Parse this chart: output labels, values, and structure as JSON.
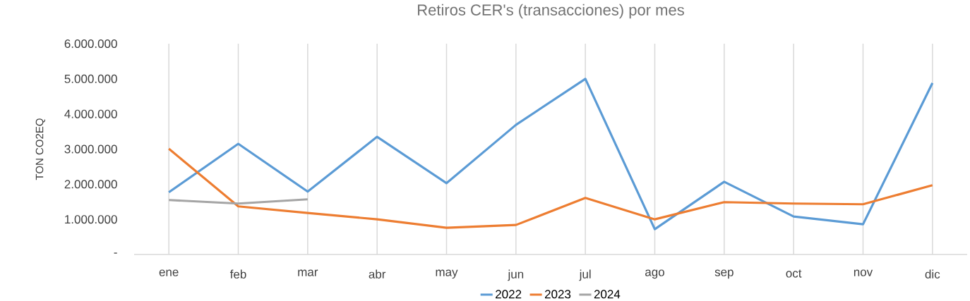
{
  "chart_data": {
    "type": "line",
    "title": "Retiros CER's (transacciones) por mes",
    "ylabel": "TON CO2EQ",
    "categories": [
      "ene",
      "feb",
      "mar",
      "abr",
      "may",
      "jun",
      "jul",
      "ago",
      "sep",
      "oct",
      "nov",
      "dic"
    ],
    "series": [
      {
        "name": "2022",
        "color": "#5b9bd5",
        "values": [
          1770000,
          3150000,
          1790000,
          3350000,
          2030000,
          3690000,
          5000000,
          720000,
          2070000,
          1080000,
          860000,
          4880000
        ]
      },
      {
        "name": "2023",
        "color": "#ed7d31",
        "values": [
          3010000,
          1370000,
          1180000,
          1000000,
          760000,
          840000,
          1610000,
          1000000,
          1490000,
          1450000,
          1430000,
          1970000
        ]
      },
      {
        "name": "2024",
        "color": "#a5a5a5",
        "values": [
          1550000,
          1450000,
          1570000,
          null,
          null,
          null,
          null,
          null,
          null,
          null,
          null,
          null
        ]
      }
    ],
    "ylim": [
      0,
      6000000
    ],
    "yticks": [
      {
        "value": 0,
        "label": "-"
      },
      {
        "value": 1000000,
        "label": "1.000.000"
      },
      {
        "value": 2000000,
        "label": "2.000.000"
      },
      {
        "value": 3000000,
        "label": "3.000.000"
      },
      {
        "value": 4000000,
        "label": "4.000.000"
      },
      {
        "value": 5000000,
        "label": "5.000.000"
      },
      {
        "value": 6000000,
        "label": "6.000.000"
      }
    ],
    "grid": "x",
    "legend": "bottom",
    "marker": "none",
    "line_style": "solid"
  }
}
